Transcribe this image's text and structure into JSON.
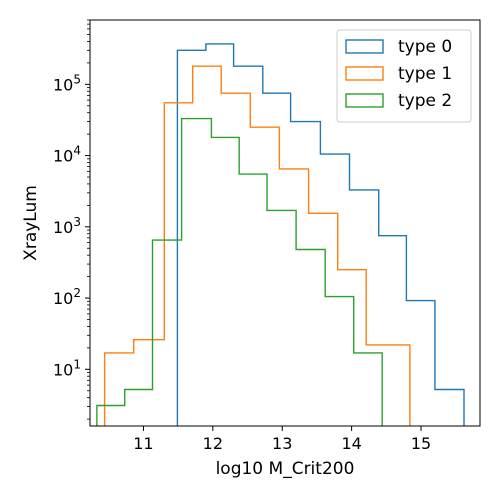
{
  "chart_data": {
    "type": "histogram",
    "title": "",
    "xlabel": "log10 M_Crit200",
    "ylabel": "XrayLum",
    "yscale": "log",
    "xlim": [
      10.23,
      15.85
    ],
    "ylim": [
      1.6,
      800000
    ],
    "grid": false,
    "legend_position": "top-right",
    "x_ticks": [
      11,
      12,
      13,
      14,
      15
    ],
    "x_tick_labels": [
      "11",
      "12",
      "13",
      "14",
      "15"
    ],
    "y_ticks": [
      10,
      100,
      1000,
      10000,
      100000
    ],
    "y_tick_labels": [
      {
        "base": "10",
        "exp": "1"
      },
      {
        "base": "10",
        "exp": "2"
      },
      {
        "base": "10",
        "exp": "3"
      },
      {
        "base": "10",
        "exp": "4"
      },
      {
        "base": "10",
        "exp": "5"
      }
    ],
    "series": [
      {
        "name": "type 0",
        "color": "#1f77b4",
        "edges": [
          11.49,
          11.9,
          12.3,
          12.72,
          13.12,
          13.55,
          13.97,
          14.39,
          14.79,
          15.2,
          15.62
        ],
        "values": [
          300000,
          370000,
          180000,
          75000,
          30000,
          10500,
          3300,
          750,
          92,
          5.2
        ]
      },
      {
        "name": "type 1",
        "color": "#ff7f0e",
        "edges": [
          10.44,
          10.86,
          11.3,
          11.71,
          12.12,
          12.54,
          12.96,
          13.38,
          13.8,
          14.21,
          14.63,
          14.84
        ],
        "values": [
          17,
          26,
          55000,
          180000,
          75000,
          25000,
          6500,
          1550,
          250,
          22,
          22
        ]
      },
      {
        "name": "type 2",
        "color": "#2ca02c",
        "edges": [
          10.33,
          10.73,
          11.13,
          11.55,
          11.98,
          12.38,
          12.78,
          13.2,
          13.62,
          14.03,
          14.44
        ],
        "values": [
          3.1,
          5.2,
          650,
          33000,
          18000,
          5500,
          1700,
          480,
          105,
          17
        ]
      }
    ]
  }
}
